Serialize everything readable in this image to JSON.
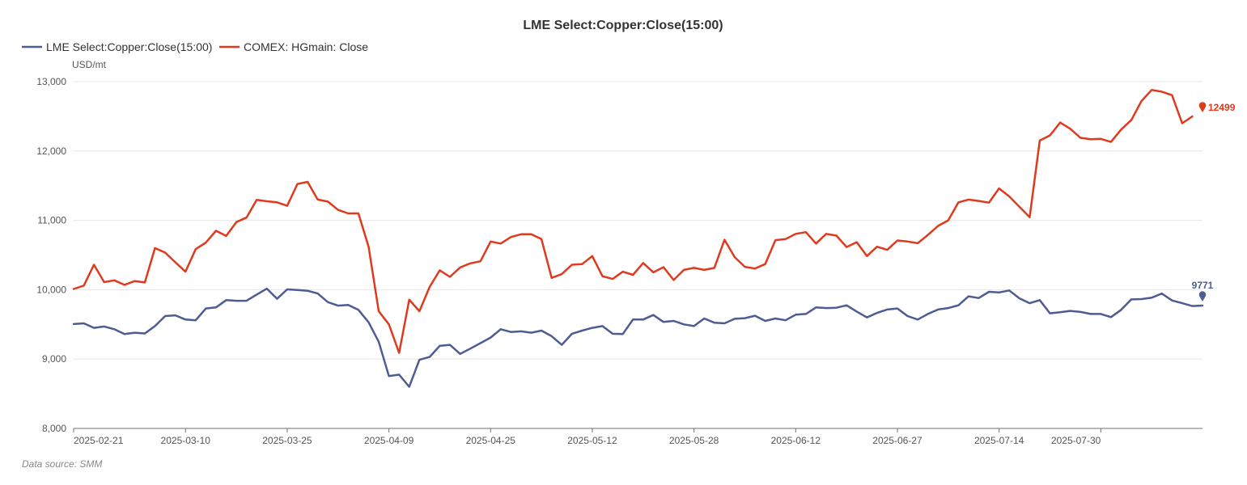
{
  "chart_data": {
    "type": "line",
    "title": "LME Select:Copper:Close(15:00)",
    "ylabel": "USD/mt",
    "ylim": [
      8000,
      13000
    ],
    "yticks": [
      8000,
      9000,
      10000,
      11000,
      12000,
      13000
    ],
    "ytick_labels": [
      "8,000",
      "9,000",
      "10,000",
      "11,000",
      "12,000",
      "13,000"
    ],
    "xtick_labels": [
      "2025-02-21",
      "2025-03-10",
      "2025-03-25",
      "2025-04-09",
      "2025-04-25",
      "2025-05-12",
      "2025-05-28",
      "2025-06-12",
      "2025-06-27",
      "2025-07-14",
      "2025-07-30"
    ],
    "xtick_index": [
      0,
      11,
      21,
      31,
      41,
      51,
      61,
      71,
      81,
      91,
      101
    ],
    "grid": true,
    "legend_position": "top-left",
    "source": "Data source:  SMM",
    "series": [
      {
        "name": "LME Select:Copper:Close(15:00)",
        "color": "#4f5b93",
        "last_label": "9771",
        "values": [
          9505,
          9515,
          9450,
          9470,
          9430,
          9360,
          9380,
          9370,
          9475,
          9620,
          9630,
          9570,
          9560,
          9730,
          9745,
          9850,
          9840,
          9840,
          9930,
          10015,
          9870,
          10005,
          9995,
          9985,
          9945,
          9820,
          9770,
          9780,
          9710,
          9530,
          9250,
          8755,
          8775,
          8600,
          8990,
          9030,
          9190,
          9205,
          9075,
          9150,
          9230,
          9310,
          9430,
          9390,
          9400,
          9380,
          9410,
          9330,
          9205,
          9365,
          9410,
          9450,
          9475,
          9365,
          9360,
          9570,
          9570,
          9635,
          9535,
          9550,
          9500,
          9475,
          9585,
          9525,
          9515,
          9580,
          9590,
          9625,
          9550,
          9585,
          9560,
          9640,
          9650,
          9745,
          9735,
          9740,
          9775,
          9685,
          9600,
          9665,
          9715,
          9730,
          9620,
          9570,
          9650,
          9715,
          9735,
          9775,
          9905,
          9880,
          9970,
          9960,
          9990,
          9875,
          9805,
          9850,
          9660,
          9675,
          9695,
          9680,
          9650,
          9650,
          9605,
          9710,
          9860,
          9865,
          9885,
          9945,
          9845,
          9805,
          9765,
          9771
        ]
      },
      {
        "name": "COMEX: HGmain: Close",
        "color": "#e03a1e",
        "last_label": "12499",
        "values": [
          10010,
          10060,
          10360,
          10110,
          10135,
          10070,
          10125,
          10105,
          10600,
          10535,
          10395,
          10260,
          10585,
          10680,
          10850,
          10775,
          10975,
          11040,
          11295,
          11275,
          11260,
          11210,
          11525,
          11555,
          11300,
          11270,
          11150,
          11100,
          11100,
          10620,
          9690,
          9500,
          9090,
          9855,
          9690,
          10040,
          10280,
          10185,
          10320,
          10380,
          10410,
          10695,
          10665,
          10760,
          10800,
          10800,
          10730,
          10170,
          10225,
          10360,
          10370,
          10485,
          10195,
          10155,
          10260,
          10215,
          10385,
          10250,
          10325,
          10140,
          10285,
          10315,
          10285,
          10315,
          10720,
          10470,
          10330,
          10305,
          10370,
          10715,
          10730,
          10805,
          10830,
          10665,
          10805,
          10780,
          10615,
          10685,
          10485,
          10620,
          10575,
          10710,
          10695,
          10670,
          10790,
          10920,
          11000,
          11260,
          11300,
          11280,
          11255,
          11460,
          11345,
          11195,
          11045,
          12150,
          12225,
          12410,
          12320,
          12190,
          12170,
          12175,
          12130,
          12310,
          12445,
          12720,
          12880,
          12855,
          12805,
          12400,
          12499
        ]
      }
    ]
  }
}
